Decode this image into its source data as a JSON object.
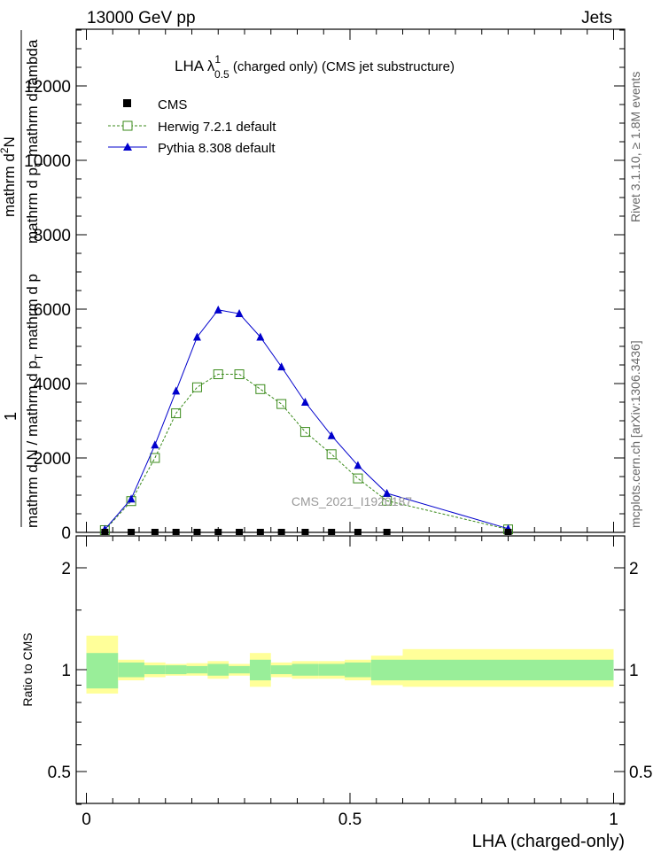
{
  "header": {
    "left": "13000 GeV pp",
    "right": "Jets"
  },
  "side_labels": {
    "rivet": "Rivet 3.1.10, ≥ 1.8M events",
    "mcplots": "mcplots.cern.ch [arXiv:1306.3436]"
  },
  "watermark": "CMS_2021_I1920187",
  "title": {
    "main": "LHA λ",
    "sup": "1",
    "sub": "0.5",
    "rest": " (charged only) (CMS jet substructure)"
  },
  "ylabel": {
    "numer": "1",
    "denom": "mathrm d N / mathrm d p",
    "denom_sub": "T",
    "denom_tail": " mathrm d p",
    "upper_numer": "mathrm d",
    "upper_sup": "2",
    "upper_tail": "N",
    "upper_denom": "mathrm d p",
    "upper_denom_sub": "T",
    "upper_denom_tail": " mathrm d lambda"
  },
  "ratio_ylabel": "Ratio to CMS",
  "xlabel": "LHA (charged-only)",
  "legend": [
    {
      "name": "CMS",
      "color": "#000000",
      "marker": "square-filled"
    },
    {
      "name": "Herwig 7.2.1 default",
      "color": "#3a8a1a",
      "marker": "square-open"
    },
    {
      "name": "Pythia 8.308 default",
      "color": "#0000cc",
      "marker": "triangle"
    }
  ],
  "colors": {
    "band_inner": "#99ee99",
    "band_outer": "#ffff99",
    "herwig": "#3a8a1a",
    "pythia": "#0000cc",
    "cms": "#000000"
  },
  "chart_data": {
    "type": "line",
    "xlim": [
      0,
      1
    ],
    "ylim": [
      0,
      14000
    ],
    "x_ticks": [
      "0",
      "0.5",
      "1"
    ],
    "y_ticks": [
      "0",
      "2000",
      "4000",
      "6000",
      "8000",
      "10000",
      "12000"
    ],
    "ratio_ylim": [
      0.35,
      2.3
    ],
    "ratio_ticks": [
      "0.5",
      "1",
      "2"
    ],
    "bin_edges": [
      0,
      0.06,
      0.11,
      0.15,
      0.19,
      0.23,
      0.27,
      0.31,
      0.35,
      0.39,
      0.44,
      0.49,
      0.54,
      0.6,
      1.0
    ],
    "cms_x": [
      0.035,
      0.085,
      0.13,
      0.17,
      0.21,
      0.25,
      0.29,
      0.33,
      0.37,
      0.415,
      0.465,
      0.515,
      0.57,
      0.8
    ],
    "cms_y": [
      0,
      0,
      0,
      0,
      0,
      0,
      0,
      0,
      0,
      0,
      0,
      0,
      0,
      0
    ],
    "series": [
      {
        "name": "Herwig 7.2.1 default",
        "x": [
          0.035,
          0.085,
          0.13,
          0.17,
          0.21,
          0.25,
          0.29,
          0.33,
          0.37,
          0.415,
          0.465,
          0.515,
          0.57,
          0.8
        ],
        "y": [
          60,
          840,
          2000,
          3200,
          3900,
          4250,
          4250,
          3850,
          3450,
          2700,
          2100,
          1450,
          850,
          80
        ]
      },
      {
        "name": "Pythia 8.308 default",
        "x": [
          0.035,
          0.085,
          0.13,
          0.17,
          0.21,
          0.25,
          0.29,
          0.33,
          0.37,
          0.415,
          0.465,
          0.515,
          0.57,
          0.8
        ],
        "y": [
          80,
          900,
          2350,
          3800,
          5250,
          5980,
          5880,
          5250,
          4450,
          3500,
          2600,
          1800,
          1050,
          100
        ]
      }
    ],
    "ratio_bands": {
      "inner_lo": [
        0.88,
        0.95,
        0.97,
        0.97,
        0.975,
        0.96,
        0.975,
        0.93,
        0.97,
        0.96,
        0.96,
        0.95,
        0.93,
        0.93
      ],
      "inner_hi": [
        1.12,
        1.05,
        1.03,
        1.03,
        1.025,
        1.04,
        1.025,
        1.07,
        1.03,
        1.04,
        1.04,
        1.05,
        1.07,
        1.07
      ],
      "outer_lo": [
        0.85,
        0.93,
        0.95,
        0.96,
        0.96,
        0.94,
        0.96,
        0.89,
        0.95,
        0.94,
        0.94,
        0.93,
        0.9,
        0.89
      ],
      "outer_hi": [
        1.26,
        1.07,
        1.05,
        1.04,
        1.045,
        1.06,
        1.04,
        1.12,
        1.05,
        1.06,
        1.06,
        1.07,
        1.1,
        1.15
      ]
    }
  }
}
